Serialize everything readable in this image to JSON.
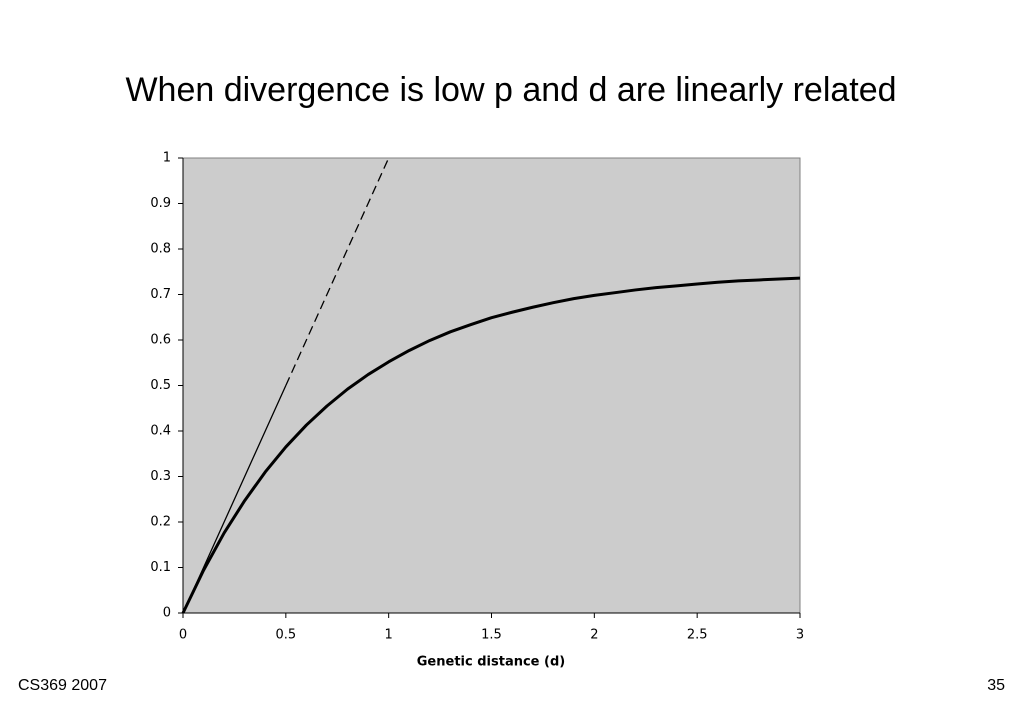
{
  "chart_data": {
    "type": "line",
    "title": "When divergence is low p and d are linearly related",
    "x_label": "Genetic distance (d)",
    "x": [
      0,
      0.1,
      0.2,
      0.3,
      0.4,
      0.5,
      0.6,
      0.7,
      0.8,
      0.9,
      1,
      1.1,
      1.2,
      1.3,
      1.4,
      1.5,
      1.6,
      1.7,
      1.8,
      1.9,
      2,
      2.1,
      2.2,
      2.3,
      2.4,
      2.5,
      2.6,
      2.7,
      2.8,
      2.9,
      3
    ],
    "series": [
      {
        "color": "#000000",
        "width": 3,
        "dash": false,
        "values": [
          0,
          0.094,
          0.176,
          0.247,
          0.31,
          0.365,
          0.413,
          0.455,
          0.492,
          0.524,
          0.552,
          0.577,
          0.599,
          0.618,
          0.634,
          0.649,
          0.661,
          0.672,
          0.682,
          0.691,
          0.698,
          0.704,
          0.71,
          0.715,
          0.719,
          0.723,
          0.727,
          0.73,
          0.732,
          0.734,
          0.736
        ]
      },
      {
        "color": "#000000",
        "width": 1.3,
        "dash": false,
        "values": [
          0,
          0.1,
          0.2,
          0.3,
          0.4,
          0.5,
          null,
          null,
          null,
          null,
          null,
          null,
          null,
          null,
          null,
          null,
          null,
          null,
          null,
          null,
          null,
          null,
          null,
          null,
          null,
          null,
          null,
          null,
          null,
          null,
          null
        ]
      },
      {
        "color": "#000000",
        "width": 1.3,
        "dash": true,
        "values": [
          null,
          null,
          null,
          null,
          null,
          0.5,
          0.6,
          0.7,
          0.8,
          0.9,
          1,
          null,
          null,
          null,
          null,
          null,
          null,
          null,
          null,
          null,
          null,
          null,
          null,
          null,
          null,
          null,
          null,
          null,
          null,
          null,
          null
        ]
      }
    ],
    "xlim": [
      0,
      3
    ],
    "xticks": [
      0,
      0.5,
      1,
      1.5,
      2,
      2.5,
      3
    ],
    "ylim": [
      0,
      1
    ],
    "yticks": [
      0,
      0.1,
      0.2,
      0.3,
      0.4,
      0.5,
      0.6,
      0.7,
      0.8,
      0.9,
      1
    ],
    "plot_background": "#cccccc",
    "grid": false
  },
  "footer": {
    "left": "CS369 2007",
    "right": "35"
  }
}
